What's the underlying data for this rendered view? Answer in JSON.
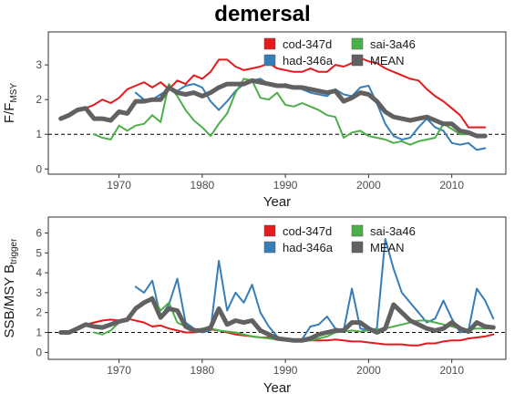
{
  "title": "demersal",
  "chart_data": [
    {
      "type": "line",
      "ylabel_main": "F/F",
      "ylabel_sub": "MSY",
      "xlabel": "Year",
      "xlim": [
        1961.5,
        2016.5
      ],
      "ylim": [
        -0.15,
        3.95
      ],
      "xticks": [
        1970,
        1980,
        1990,
        2000,
        2010
      ],
      "yticks": [
        0,
        1,
        2,
        3
      ],
      "reference_line": 1,
      "legend_position": "top-right",
      "series": [
        {
          "name": "cod-347d",
          "color": "#e41a1c",
          "width": 2,
          "x": [
            1963,
            1964,
            1965,
            1966,
            1967,
            1968,
            1969,
            1970,
            1971,
            1972,
            1973,
            1974,
            1975,
            1976,
            1977,
            1978,
            1979,
            1980,
            1981,
            1982,
            1983,
            1984,
            1985,
            1986,
            1987,
            1988,
            1989,
            1990,
            1991,
            1992,
            1993,
            1994,
            1995,
            1996,
            1997,
            1998,
            1999,
            2000,
            2001,
            2002,
            2003,
            2004,
            2005,
            2006,
            2007,
            2008,
            2009,
            2010,
            2011,
            2012,
            2013,
            2014
          ],
          "y": [
            1.45,
            1.55,
            1.7,
            1.75,
            1.85,
            2.0,
            1.9,
            2.05,
            2.3,
            2.4,
            2.5,
            2.35,
            2.5,
            2.3,
            2.55,
            2.45,
            2.7,
            2.6,
            2.8,
            3.15,
            3.15,
            2.95,
            2.85,
            2.9,
            2.95,
            3.05,
            2.9,
            2.85,
            2.8,
            2.8,
            2.9,
            2.8,
            2.8,
            3.0,
            2.95,
            3.05,
            3.2,
            3.1,
            3.05,
            2.9,
            2.8,
            2.7,
            2.6,
            2.55,
            2.3,
            2.1,
            1.95,
            1.75,
            1.55,
            1.2,
            1.2,
            1.2
          ]
        },
        {
          "name": "had-346a",
          "color": "#377eb8",
          "width": 2,
          "x": [
            1972,
            1973,
            1974,
            1975,
            1976,
            1977,
            1978,
            1979,
            1980,
            1981,
            1982,
            1983,
            1984,
            1985,
            1986,
            1987,
            1988,
            1989,
            1990,
            1991,
            1992,
            1993,
            1994,
            1995,
            1996,
            1997,
            1998,
            1999,
            2000,
            2001,
            2002,
            2003,
            2004,
            2005,
            2006,
            2007,
            2008,
            2009,
            2010,
            2011,
            2012,
            2013,
            2014
          ],
          "y": [
            2.2,
            2.0,
            2.0,
            2.15,
            2.3,
            2.25,
            2.4,
            2.45,
            2.35,
            1.95,
            1.7,
            1.95,
            2.25,
            2.45,
            2.55,
            2.6,
            2.45,
            2.4,
            2.45,
            2.35,
            2.3,
            2.2,
            2.15,
            2.1,
            2.3,
            2.15,
            2.1,
            2.35,
            2.4,
            1.9,
            1.3,
            0.95,
            0.85,
            0.9,
            1.2,
            1.45,
            1.2,
            1.1,
            0.75,
            0.7,
            0.75,
            0.55,
            0.6
          ]
        },
        {
          "name": "sai-3a46",
          "color": "#4daf4a",
          "width": 2,
          "x": [
            1967,
            1968,
            1969,
            1970,
            1971,
            1972,
            1973,
            1974,
            1975,
            1976,
            1977,
            1978,
            1979,
            1980,
            1981,
            1982,
            1983,
            1984,
            1985,
            1986,
            1987,
            1988,
            1989,
            1990,
            1991,
            1992,
            1993,
            1994,
            1995,
            1996,
            1997,
            1998,
            1999,
            2000,
            2001,
            2002,
            2003,
            2004,
            2005,
            2006,
            2007,
            2008,
            2009,
            2010,
            2011,
            2012,
            2013,
            2014
          ],
          "y": [
            1.0,
            0.9,
            0.85,
            1.25,
            1.1,
            1.25,
            1.3,
            1.55,
            1.35,
            2.45,
            2.1,
            1.7,
            1.4,
            1.2,
            0.95,
            1.3,
            1.6,
            2.2,
            2.6,
            2.55,
            2.05,
            2.0,
            2.2,
            1.85,
            1.8,
            1.9,
            1.8,
            1.7,
            1.55,
            1.5,
            0.9,
            1.05,
            1.1,
            0.95,
            0.9,
            0.85,
            0.75,
            0.8,
            0.7,
            0.8,
            0.85,
            0.9,
            1.3,
            1.15,
            1.0,
            1.0,
            0.95,
            0.95
          ]
        },
        {
          "name": "MEAN",
          "color": "#616161",
          "width": 5,
          "x": [
            1963,
            1964,
            1965,
            1966,
            1967,
            1968,
            1969,
            1970,
            1971,
            1972,
            1973,
            1974,
            1975,
            1976,
            1977,
            1978,
            1979,
            1980,
            1981,
            1982,
            1983,
            1984,
            1985,
            1986,
            1987,
            1988,
            1989,
            1990,
            1991,
            1992,
            1993,
            1994,
            1995,
            1996,
            1997,
            1998,
            1999,
            2000,
            2001,
            2002,
            2003,
            2004,
            2005,
            2006,
            2007,
            2008,
            2009,
            2010,
            2011,
            2012,
            2013,
            2014
          ],
          "y": [
            1.45,
            1.55,
            1.7,
            1.75,
            1.45,
            1.45,
            1.4,
            1.65,
            1.6,
            1.95,
            1.95,
            2.0,
            2.0,
            2.35,
            2.2,
            2.15,
            2.2,
            2.1,
            2.2,
            2.35,
            2.45,
            2.45,
            2.45,
            2.55,
            2.5,
            2.45,
            2.4,
            2.4,
            2.35,
            2.35,
            2.3,
            2.25,
            2.2,
            2.25,
            1.95,
            2.05,
            2.2,
            2.15,
            1.95,
            1.65,
            1.5,
            1.45,
            1.4,
            1.45,
            1.5,
            1.4,
            1.3,
            1.3,
            1.1,
            1.05,
            0.95,
            0.95
          ]
        }
      ]
    },
    {
      "type": "line",
      "ylabel_main": "SSB/MSY B",
      "ylabel_sub": "trigger",
      "xlabel": "Year",
      "xlim": [
        1961.5,
        2016.5
      ],
      "ylim": [
        -0.35,
        6.8
      ],
      "xticks": [
        1970,
        1980,
        1990,
        2000,
        2010
      ],
      "yticks": [
        0,
        1,
        2,
        3,
        4,
        5,
        6
      ],
      "reference_line": 1,
      "legend_position": "top-right",
      "series": [
        {
          "name": "cod-347d",
          "color": "#e41a1c",
          "width": 2,
          "x": [
            1963,
            1964,
            1965,
            1966,
            1967,
            1968,
            1969,
            1970,
            1971,
            1972,
            1973,
            1974,
            1975,
            1976,
            1977,
            1978,
            1979,
            1980,
            1981,
            1982,
            1983,
            1984,
            1985,
            1986,
            1987,
            1988,
            1989,
            1990,
            1991,
            1992,
            1993,
            1994,
            1995,
            1996,
            1997,
            1998,
            1999,
            2000,
            2001,
            2002,
            2003,
            2004,
            2005,
            2006,
            2007,
            2008,
            2009,
            2010,
            2011,
            2012,
            2013,
            2014,
            2015
          ],
          "y": [
            1.0,
            1.0,
            1.2,
            1.4,
            1.5,
            1.6,
            1.65,
            1.6,
            1.7,
            1.6,
            1.5,
            1.3,
            1.35,
            1.2,
            1.1,
            1.0,
            1.0,
            1.05,
            1.15,
            1.1,
            1.0,
            0.9,
            0.85,
            0.8,
            0.75,
            0.75,
            0.7,
            0.7,
            0.65,
            0.6,
            0.6,
            0.6,
            0.6,
            0.65,
            0.6,
            0.55,
            0.55,
            0.5,
            0.45,
            0.4,
            0.4,
            0.4,
            0.35,
            0.35,
            0.45,
            0.45,
            0.55,
            0.6,
            0.6,
            0.7,
            0.75,
            0.8,
            0.9
          ]
        },
        {
          "name": "had-346a",
          "color": "#377eb8",
          "width": 2,
          "x": [
            1972,
            1973,
            1974,
            1975,
            1976,
            1977,
            1978,
            1979,
            1980,
            1981,
            1982,
            1983,
            1984,
            1985,
            1986,
            1987,
            1988,
            1989,
            1990,
            1991,
            1992,
            1993,
            1994,
            1995,
            1996,
            1997,
            1998,
            1999,
            2000,
            2001,
            2002,
            2003,
            2004,
            2005,
            2006,
            2007,
            2008,
            2009,
            2010,
            2011,
            2012,
            2013,
            2014,
            2015
          ],
          "y": [
            3.3,
            3.0,
            3.6,
            1.8,
            2.4,
            3.7,
            1.5,
            1.2,
            1.0,
            1.1,
            4.6,
            2.1,
            3.0,
            2.5,
            3.4,
            2.0,
            1.3,
            0.8,
            0.6,
            0.6,
            0.65,
            1.3,
            1.4,
            1.8,
            1.2,
            1.1,
            3.2,
            1.2,
            1.1,
            1.2,
            5.7,
            4.2,
            3.0,
            2.5,
            2.0,
            1.5,
            1.7,
            2.6,
            1.7,
            1.0,
            1.1,
            3.2,
            2.6,
            1.7
          ]
        },
        {
          "name": "sai-3a46",
          "color": "#4daf4a",
          "width": 2,
          "x": [
            1967,
            1968,
            1969,
            1970,
            1971,
            1972,
            1973,
            1974,
            1975,
            1976,
            1977,
            1978,
            1979,
            1980,
            1981,
            1982,
            1983,
            1984,
            1985,
            1986,
            1987,
            1988,
            1989,
            1990,
            1991,
            1992,
            1993,
            1994,
            1995,
            1996,
            1997,
            1998,
            1999,
            2000,
            2001,
            2002,
            2003,
            2004,
            2005,
            2006,
            2007,
            2008,
            2009,
            2010,
            2011,
            2012,
            2013,
            2014,
            2015
          ],
          "y": [
            1.0,
            0.9,
            1.1,
            1.5,
            1.7,
            2.3,
            2.5,
            2.8,
            2.1,
            2.5,
            1.5,
            1.3,
            1.1,
            1.2,
            1.2,
            1.1,
            1.05,
            1.0,
            0.9,
            0.8,
            0.75,
            0.7,
            0.65,
            0.6,
            0.55,
            0.55,
            0.6,
            0.7,
            0.8,
            1.0,
            1.05,
            1.1,
            1.05,
            1.1,
            1.15,
            1.2,
            1.3,
            1.4,
            1.5,
            1.6,
            1.6,
            1.5,
            1.4,
            1.3,
            1.2,
            1.15,
            1.2,
            1.2,
            1.2
          ]
        },
        {
          "name": "MEAN",
          "color": "#616161",
          "width": 5,
          "x": [
            1963,
            1964,
            1965,
            1966,
            1967,
            1968,
            1969,
            1970,
            1971,
            1972,
            1973,
            1974,
            1975,
            1976,
            1977,
            1978,
            1979,
            1980,
            1981,
            1982,
            1983,
            1984,
            1985,
            1986,
            1987,
            1988,
            1989,
            1990,
            1991,
            1992,
            1993,
            1994,
            1995,
            1996,
            1997,
            1998,
            1999,
            2000,
            2001,
            2002,
            2003,
            2004,
            2005,
            2006,
            2007,
            2008,
            2009,
            2010,
            2011,
            2012,
            2013,
            2014,
            2015
          ],
          "y": [
            1.0,
            1.0,
            1.2,
            1.4,
            1.3,
            1.25,
            1.4,
            1.55,
            1.65,
            2.2,
            2.5,
            2.7,
            1.75,
            2.2,
            2.1,
            1.3,
            1.1,
            1.1,
            1.25,
            2.2,
            1.4,
            1.6,
            1.5,
            1.6,
            1.1,
            0.9,
            0.7,
            0.65,
            0.6,
            0.6,
            0.7,
            0.9,
            1.0,
            1.1,
            1.1,
            1.5,
            1.5,
            1.2,
            1.0,
            1.2,
            2.4,
            2.0,
            1.6,
            1.4,
            1.2,
            1.1,
            1.2,
            1.5,
            1.2,
            1.05,
            1.5,
            1.3,
            1.25
          ]
        }
      ]
    }
  ]
}
